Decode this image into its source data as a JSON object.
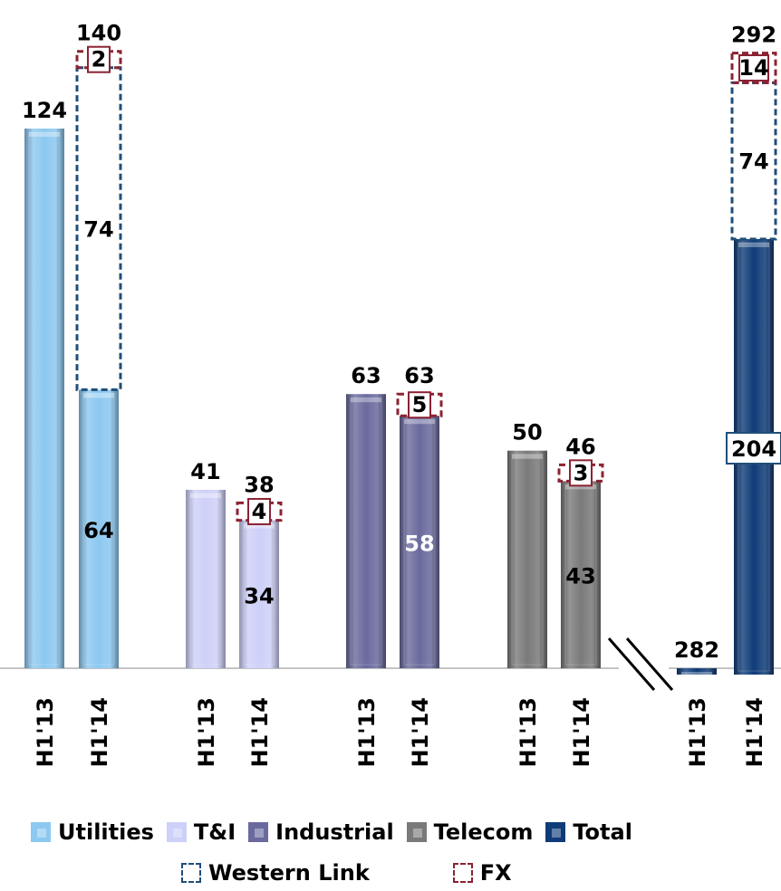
{
  "chart_data": {
    "type": "bar",
    "groups": [
      {
        "name": "Utilities",
        "bars": [
          {
            "category": "H1'13",
            "total_label": "124",
            "base": 124
          },
          {
            "category": "H1'14",
            "total_label": "140",
            "base": 64,
            "base_label": "64",
            "western_link": 74,
            "western_link_label": "74",
            "fx": 2,
            "fx_label": "2"
          }
        ]
      },
      {
        "name": "T&I",
        "bars": [
          {
            "category": "H1'13",
            "total_label": "41",
            "base": 41
          },
          {
            "category": "H1'14",
            "total_label": "38",
            "base": 34,
            "base_label": "34",
            "fx": 4,
            "fx_label": "4"
          }
        ]
      },
      {
        "name": "Industrial",
        "bars": [
          {
            "category": "H1'13",
            "total_label": "63",
            "base": 63
          },
          {
            "category": "H1'14",
            "total_label": "63",
            "base": 58,
            "base_label": "58",
            "fx": 5,
            "fx_label": "5"
          }
        ]
      },
      {
        "name": "Telecom",
        "bars": [
          {
            "category": "H1'13",
            "total_label": "50",
            "base": 50
          },
          {
            "category": "H1'14",
            "total_label": "46",
            "base": 43,
            "base_label": "43",
            "fx": 3,
            "fx_label": "3"
          }
        ]
      },
      {
        "name": "Total",
        "bars": [
          {
            "category": "H1'13",
            "total_label": "282",
            "base": 282
          },
          {
            "category": "H1'14",
            "total_label": "292",
            "base": 204,
            "base_label": "204",
            "western_link": 74,
            "western_link_label": "74",
            "fx": 14,
            "fx_label": "14"
          }
        ]
      }
    ],
    "legend": [
      {
        "name": "Utilities",
        "style": "solid",
        "color": "#8cc8f0"
      },
      {
        "name": "T&I",
        "style": "solid",
        "color": "#cdd0f8"
      },
      {
        "name": "Industrial",
        "style": "solid",
        "color": "#6a6a9e"
      },
      {
        "name": "Telecom",
        "style": "solid",
        "color": "#7a7a7a"
      },
      {
        "name": "Total",
        "style": "solid",
        "color": "#0f3c78"
      },
      {
        "name": "Western Link",
        "style": "dashed",
        "color": "#1f4e79"
      },
      {
        "name": "FX",
        "style": "dashed",
        "color": "#8b2332"
      }
    ],
    "axis_break": "between Telecom and Total",
    "colors": {
      "Utilities": "#8cc8f0",
      "T&I": "#cdd0f8",
      "Industrial": "#6a6a9e",
      "Telecom": "#7a7a7a",
      "Total": "#0f3c78",
      "western_link": "#1f4e79",
      "fx": "#8b2332"
    },
    "label_colors": {
      "Industrial": "#ffffff"
    }
  }
}
